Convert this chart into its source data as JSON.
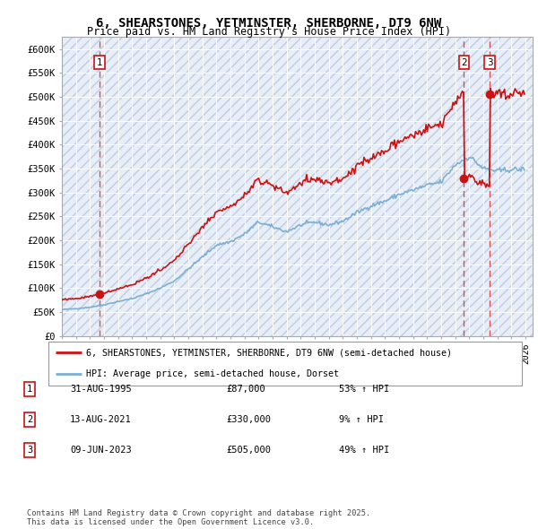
{
  "title": "6, SHEARSTONES, YETMINSTER, SHERBORNE, DT9 6NW",
  "subtitle": "Price paid vs. HM Land Registry's House Price Index (HPI)",
  "ylim": [
    0,
    625000
  ],
  "yticks": [
    0,
    50000,
    100000,
    150000,
    200000,
    250000,
    300000,
    350000,
    400000,
    450000,
    500000,
    550000,
    600000
  ],
  "ytick_labels": [
    "£0",
    "£50K",
    "£100K",
    "£150K",
    "£200K",
    "£250K",
    "£300K",
    "£350K",
    "£400K",
    "£450K",
    "£500K",
    "£550K",
    "£600K"
  ],
  "xlim_start": 1993.0,
  "xlim_end": 2026.5,
  "hpi_color": "#7bafd4",
  "price_color": "#cc1111",
  "dashed_line_color": "#dd3333",
  "background_color": "#e8eef8",
  "hatch_color": "#c0cce0",
  "transaction_dates": [
    1995.664,
    2021.617,
    2023.44
  ],
  "transaction_prices": [
    87000,
    330000,
    505000
  ],
  "transaction_labels": [
    "1",
    "2",
    "3"
  ],
  "legend_house_label": "6, SHEARSTONES, YETMINSTER, SHERBORNE, DT9 6NW (semi-detached house)",
  "legend_hpi_label": "HPI: Average price, semi-detached house, Dorset",
  "table_rows": [
    {
      "num": "1",
      "date": "31-AUG-1995",
      "price": "£87,000",
      "hpi": "53% ↑ HPI"
    },
    {
      "num": "2",
      "date": "13-AUG-2021",
      "price": "£330,000",
      "hpi": "9% ↑ HPI"
    },
    {
      "num": "3",
      "date": "09-JUN-2023",
      "price": "£505,000",
      "hpi": "49% ↑ HPI"
    }
  ],
  "footer": "Contains HM Land Registry data © Crown copyright and database right 2025.\nThis data is licensed under the Open Government Licence v3.0."
}
